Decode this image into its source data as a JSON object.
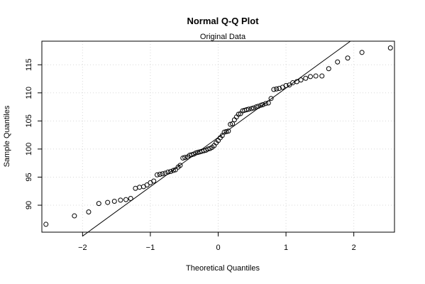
{
  "chart_data": {
    "type": "scatter",
    "title": "Normal Q-Q Plot",
    "subtitle": "Original Data",
    "xlabel": "Theoretical Quantiles",
    "ylabel": "Sample Quantiles",
    "xlim": [
      -2.6,
      2.6
    ],
    "ylim": [
      85.2,
      119.2
    ],
    "xticks": [
      -2,
      -1,
      0,
      1,
      2
    ],
    "yticks": [
      90,
      95,
      100,
      105,
      110,
      115
    ],
    "grid": true,
    "reference_line": {
      "x": [
        -2.0,
        1.95
      ],
      "y": [
        84.5,
        119.2
      ]
    },
    "series": [
      {
        "x": [
          -2.54,
          -2.12,
          -1.91,
          -1.76,
          -1.63,
          -1.53,
          -1.44,
          -1.36,
          -1.29,
          -1.22,
          -1.16,
          -1.1,
          -1.05,
          -1.0,
          -0.95,
          -0.9,
          -0.86,
          -0.82,
          -0.78,
          -0.74,
          -0.7,
          -0.66,
          -0.63,
          -0.59,
          -0.56,
          -0.52,
          -0.49,
          -0.45,
          -0.42,
          -0.39,
          -0.36,
          -0.33,
          -0.3,
          -0.27,
          -0.24,
          -0.21,
          -0.18,
          -0.15,
          -0.12,
          -0.09,
          -0.06,
          -0.03,
          0.0,
          0.03,
          0.06,
          0.09,
          0.12,
          0.15,
          0.18,
          0.21,
          0.24,
          0.27,
          0.3,
          0.33,
          0.36,
          0.39,
          0.42,
          0.45,
          0.49,
          0.52,
          0.56,
          0.59,
          0.63,
          0.66,
          0.7,
          0.74,
          0.78,
          0.82,
          0.86,
          0.9,
          0.95,
          1.0,
          1.05,
          1.1,
          1.16,
          1.22,
          1.29,
          1.36,
          1.44,
          1.53,
          1.63,
          1.76,
          1.91,
          2.12,
          2.54
        ],
        "y": [
          86.6,
          88.1,
          88.8,
          90.3,
          90.5,
          90.7,
          90.9,
          91.0,
          91.2,
          93.0,
          93.2,
          93.3,
          93.6,
          94.0,
          94.3,
          95.4,
          95.5,
          95.6,
          95.7,
          95.9,
          96.0,
          96.2,
          96.3,
          96.8,
          97.1,
          98.4,
          98.5,
          98.6,
          98.9,
          99.0,
          99.1,
          99.3,
          99.4,
          99.5,
          99.6,
          99.7,
          99.8,
          100.0,
          100.1,
          100.3,
          100.6,
          101.1,
          101.5,
          102.0,
          102.4,
          103.0,
          103.1,
          103.2,
          104.4,
          104.5,
          105.2,
          105.7,
          106.2,
          106.3,
          106.8,
          106.9,
          107.0,
          107.1,
          107.2,
          107.3,
          107.5,
          107.6,
          107.8,
          107.9,
          108.1,
          108.2,
          109.0,
          110.6,
          110.7,
          110.8,
          111.0,
          111.3,
          111.4,
          111.8,
          112.0,
          112.3,
          112.6,
          112.9,
          113.0,
          113.0,
          114.3,
          115.5,
          116.2,
          117.2,
          118.0
        ]
      }
    ]
  }
}
